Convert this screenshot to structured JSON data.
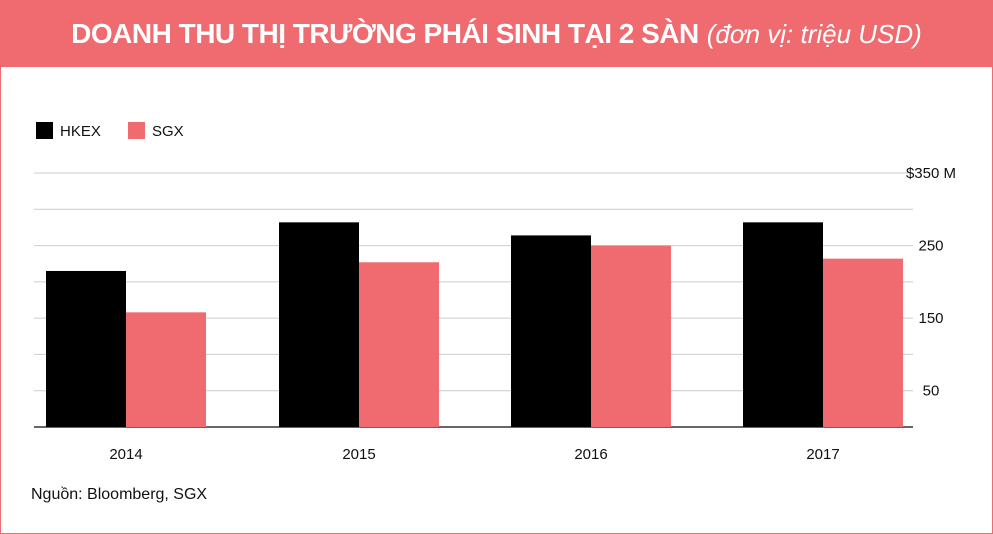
{
  "header": {
    "title": "DOANH THU THỊ TRƯỜNG PHÁI SINH TẠI 2 SÀN",
    "unit": "(đơn vị: triệu USD)"
  },
  "source": "Nguồn: Bloomberg, SGX",
  "colors": {
    "accent": "#ef6b70",
    "hkex": "#000000",
    "sgx": "#ef6b70",
    "grid": "#cccccc"
  },
  "chart_data": {
    "type": "bar",
    "categories": [
      "2014",
      "2015",
      "2016",
      "2017"
    ],
    "series": [
      {
        "name": "HKEX",
        "values": [
          215,
          282,
          264,
          282
        ]
      },
      {
        "name": "SGX",
        "values": [
          158,
          227,
          250,
          232
        ]
      }
    ],
    "yticks": [
      {
        "value": 350,
        "label": "$350 M"
      },
      {
        "value": 250,
        "label": "250"
      },
      {
        "value": 150,
        "label": "150"
      },
      {
        "value": 50,
        "label": "50"
      }
    ],
    "gridlines": [
      350,
      300,
      250,
      200,
      150,
      100,
      50,
      0
    ],
    "ylim": [
      0,
      350
    ],
    "legend": "top-left",
    "grid": true
  }
}
